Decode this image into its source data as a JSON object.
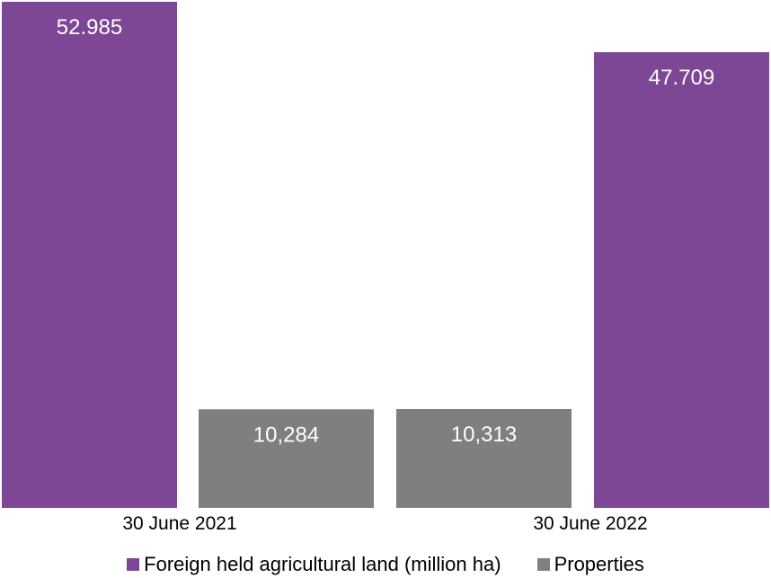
{
  "chart_data": {
    "type": "bar",
    "categories": [
      "30 June 2021",
      "30 June 2022"
    ],
    "series": [
      {
        "name": "Foreign held agricultural land (million ha)",
        "color": "#7d4795",
        "values": [
          52.985,
          47.709
        ],
        "labels": [
          "52.985",
          "47.709"
        ]
      },
      {
        "name": "Properties",
        "color": "#7f7f7f",
        "values": [
          10284,
          10313
        ],
        "labels": [
          "10,284",
          "10,313"
        ]
      }
    ],
    "title": "",
    "xlabel": "",
    "ylabel": "",
    "grid": false,
    "legend_position": "bottom"
  }
}
